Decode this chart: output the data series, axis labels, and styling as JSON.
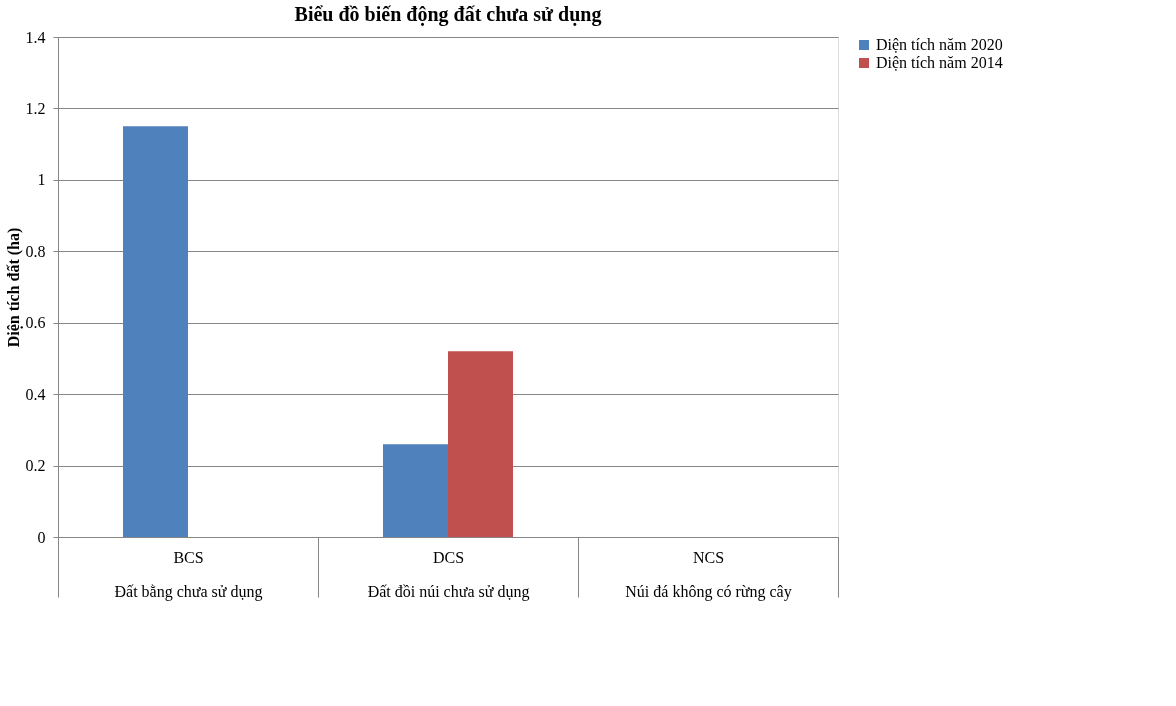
{
  "chart_data": {
    "type": "bar",
    "title": "Biểu đồ biến động đất chưa sử dụng",
    "ylabel": "Diện tích đất (ha)",
    "categories": [
      "BCS\nĐất bằng chưa sử dụng",
      "DCS\nĐất đồi núi chưa sử dụng",
      "NCS\nNúi đá không có rừng cây"
    ],
    "series": [
      {
        "name": "Diện tích năm 2020",
        "color": "#4f81bd",
        "values": [
          1.15,
          0.26,
          0
        ]
      },
      {
        "name": "Diện tích năm 2014",
        "color": "#c0504d",
        "values": [
          0,
          0.52,
          0
        ]
      }
    ],
    "ylim": [
      0,
      1.4
    ],
    "yticks": [
      0,
      0.2,
      0.4,
      0.6,
      0.8,
      1,
      1.2,
      1.4
    ],
    "grid": "y",
    "legend": "right"
  }
}
